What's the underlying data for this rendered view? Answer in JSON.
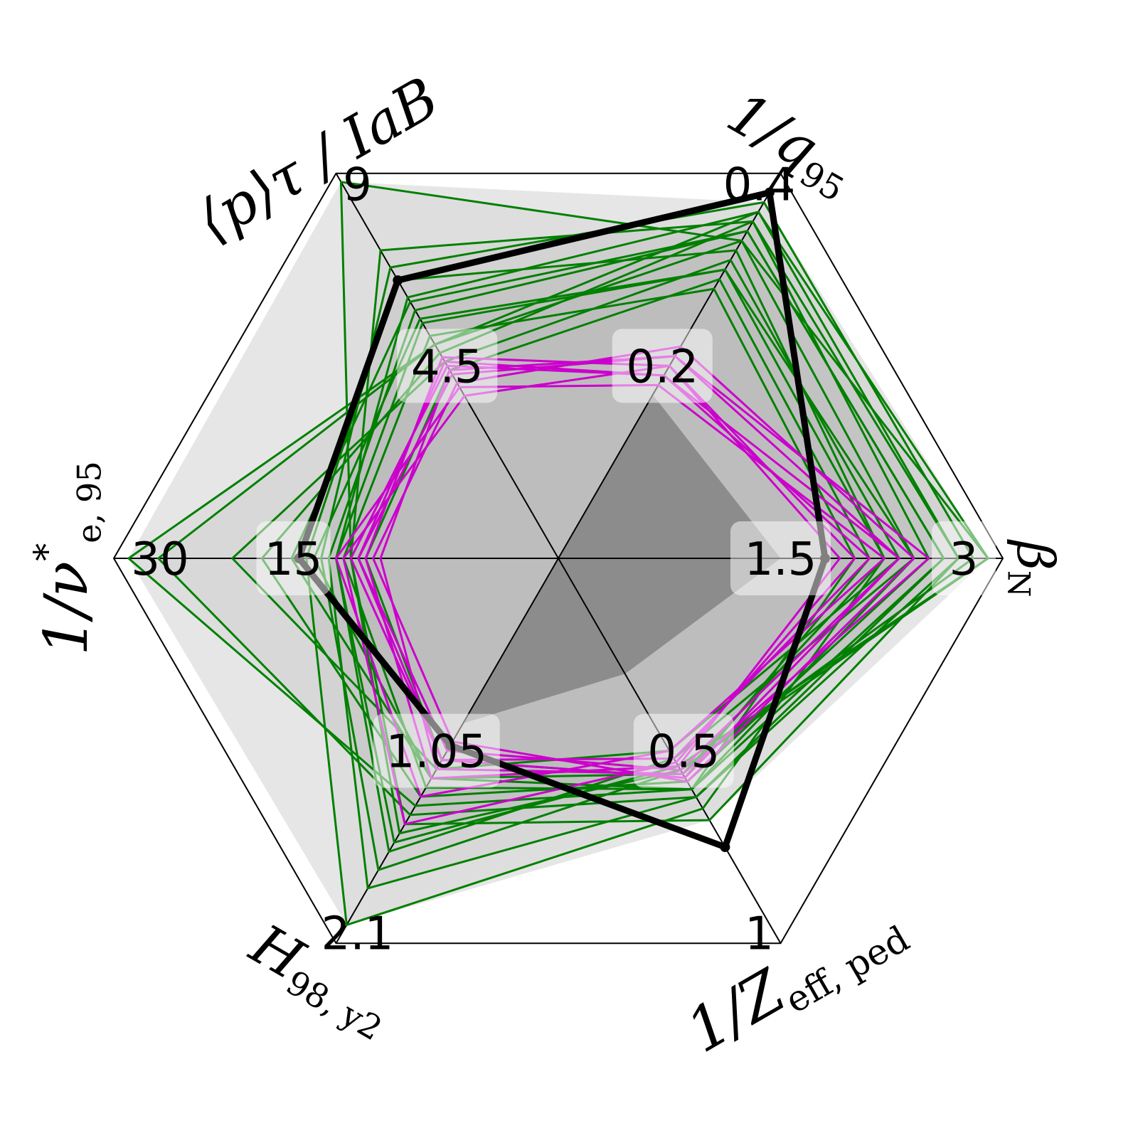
{
  "chart_data": {
    "type": "radar",
    "title": "",
    "axes": [
      {
        "key": "beta_n",
        "label": "βN",
        "label_main": "β",
        "label_sub": "N",
        "max": 3,
        "mid": 1.5,
        "max_label": "3",
        "mid_label": "1.5"
      },
      {
        "key": "inv_q95",
        "label": "1/q95",
        "label_main": "1/q",
        "label_sub": "95",
        "max": 0.4,
        "mid": 0.2,
        "max_label": "0.4",
        "mid_label": "0.2"
      },
      {
        "key": "p_tau_IaB",
        "label": "⟨p⟩τ / IaB",
        "label_main": "⟨p⟩τ / IaB",
        "label_sub": "",
        "max": 9,
        "mid": 4.5,
        "max_label": "9",
        "mid_label": "4.5"
      },
      {
        "key": "inv_nu_e95",
        "label": "1/ν*e,95",
        "label_main": "1/ν",
        "label_sub": "e, 95",
        "label_sup": "*",
        "max": 30,
        "mid": 15,
        "max_label": "30",
        "mid_label": "15"
      },
      {
        "key": "H98y2",
        "label": "H98,y2",
        "label_main": "H",
        "label_sub": "98, y2",
        "max": 2.1,
        "mid": 1.05,
        "max_label": "2.1",
        "mid_label": "1.05"
      },
      {
        "key": "inv_zeff_ped",
        "label": "1/Zeff,ped",
        "label_main": "1/Z",
        "label_sub": "eff, ped",
        "max": 1,
        "mid": 0.5,
        "max_label": "1",
        "mid_label": "0.5"
      }
    ],
    "series": [
      {
        "role": "target",
        "color": "#000000",
        "values": [
          1.8,
          0.38,
          6.5,
          17.5,
          1.02,
          0.75
        ]
      },
      {
        "role": "inner-core",
        "color": "#8c8c8c",
        "values": [
          1.5,
          0.17,
          0.0,
          0.0,
          0.9,
          0.3
        ]
      }
    ],
    "group_colors": {
      "green": "#008000",
      "magenta": "#cc00cc",
      "grey_fill": "#bdbdbd",
      "light_fill": "#e6e6e6"
    },
    "green_runs": [
      [
        2.6,
        0.34,
        6.0,
        18.0,
        1.2,
        0.6
      ],
      [
        2.9,
        0.33,
        8.8,
        14.0,
        1.5,
        0.55
      ],
      [
        2.7,
        0.36,
        5.0,
        27.0,
        1.4,
        0.62
      ],
      [
        2.4,
        0.3,
        5.5,
        15.0,
        1.6,
        0.52
      ],
      [
        2.2,
        0.32,
        6.5,
        17.0,
        2.0,
        0.65
      ],
      [
        2.5,
        0.35,
        4.8,
        20.0,
        1.3,
        0.58
      ],
      [
        2.0,
        0.28,
        5.2,
        14.5,
        1.25,
        0.6
      ],
      [
        2.8,
        0.37,
        6.8,
        16.0,
        1.7,
        0.55
      ],
      [
        2.3,
        0.31,
        4.6,
        22.0,
        1.15,
        0.5
      ],
      [
        2.6,
        0.34,
        5.8,
        15.5,
        1.8,
        0.62
      ],
      [
        2.1,
        0.29,
        4.4,
        13.0,
        1.1,
        0.57
      ],
      [
        2.7,
        0.35,
        7.2,
        14.0,
        1.45,
        0.68
      ],
      [
        2.4,
        0.33,
        5.0,
        29.0,
        1.35,
        0.6
      ],
      [
        2.9,
        0.36,
        6.1,
        15.0,
        1.55,
        0.54
      ],
      [
        2.2,
        0.3,
        5.6,
        16.5,
        1.2,
        0.56
      ]
    ],
    "magenta_runs": [
      [
        2.3,
        0.21,
        4.3,
        13.5,
        1.05,
        0.55
      ],
      [
        2.1,
        0.19,
        4.5,
        14.0,
        1.1,
        0.52
      ],
      [
        2.4,
        0.22,
        4.1,
        12.5,
        1.0,
        0.58
      ],
      [
        1.9,
        0.2,
        4.7,
        13.0,
        1.2,
        0.54
      ],
      [
        2.2,
        0.18,
        4.0,
        15.0,
        1.3,
        0.5
      ],
      [
        2.5,
        0.21,
        4.4,
        12.0,
        1.15,
        0.56
      ],
      [
        2.0,
        0.2,
        3.8,
        14.5,
        1.45,
        0.53
      ],
      [
        2.3,
        0.19,
        4.6,
        13.5,
        1.1,
        0.57
      ]
    ]
  }
}
